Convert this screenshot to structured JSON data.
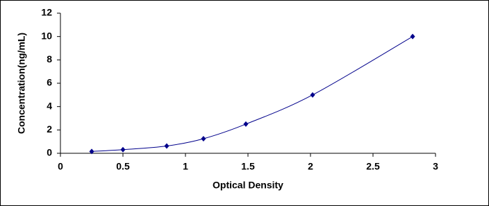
{
  "chart_data": {
    "type": "scatter",
    "line": "smooth",
    "xlabel": "Optical Density",
    "ylabel": "Concentration(ng/mL)",
    "x": [
      0.25,
      0.5,
      0.85,
      1.144,
      1.483,
      2.017,
      2.817
    ],
    "values": [
      0.156,
      0.312,
      0.625,
      1.25,
      2.5,
      5,
      10
    ],
    "color": "#00008b",
    "xlim": [
      0,
      3
    ],
    "xticks": [
      0,
      0.5,
      1,
      1.5,
      2,
      2.5,
      3
    ],
    "ylim": [
      0,
      12
    ],
    "yticks": [
      0,
      2,
      4,
      6,
      8,
      10,
      12
    ]
  }
}
